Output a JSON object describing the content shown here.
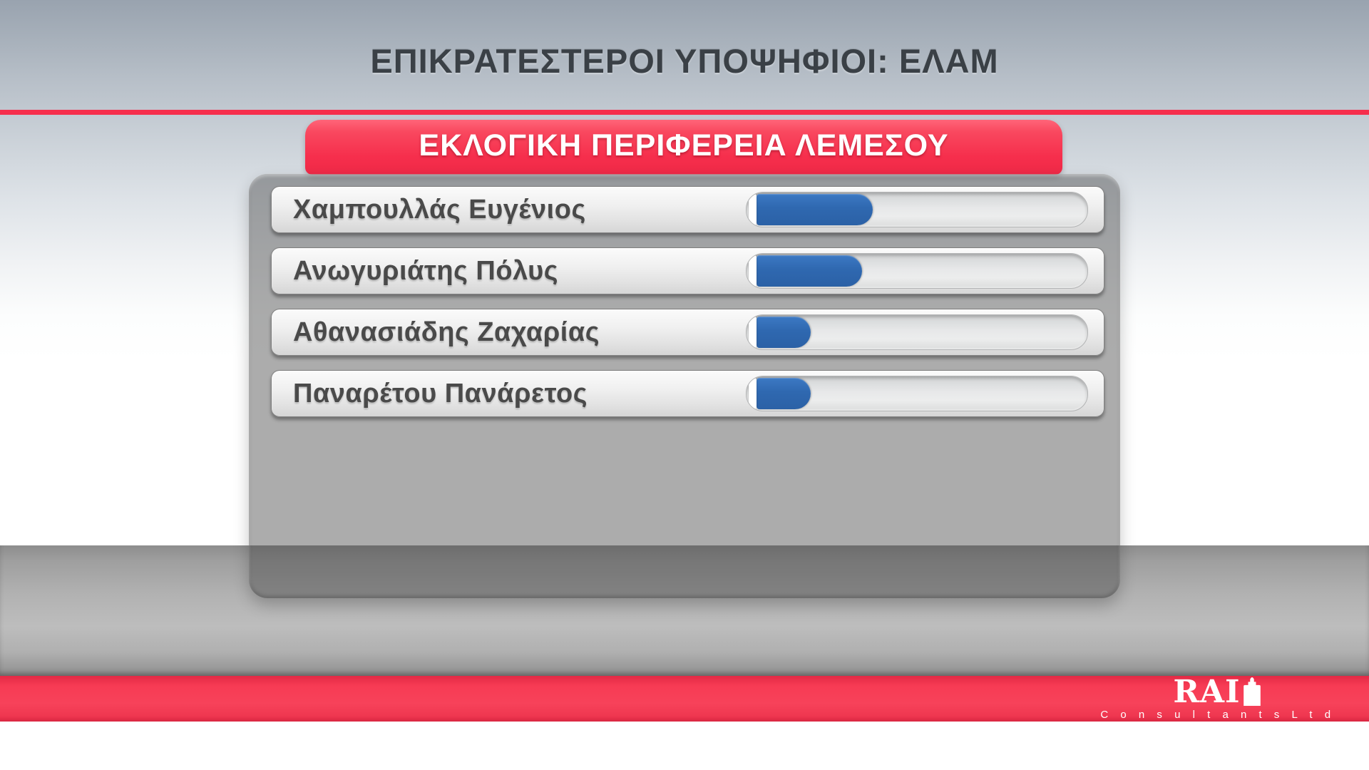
{
  "chart_data": {
    "type": "bar",
    "orientation": "horizontal",
    "title": "ΕΠΙΚΡΑΤΕΣΤΕΡΟΙ ΥΠΟΨΗΦΙΟΙ: ΕΛΑΜ",
    "subtitle": "ΕΚΛΟΓΙΚΗ ΠΕΡΙΦΕΡΕΙΑ ΛΕΜΕΣΟΥ",
    "categories": [
      "Χαμπουλλάς Ευγένιος",
      "Ανωγυριάτης Πόλυς",
      "Αθανασιάδης Ζαχαρίας",
      "Παναρέτου Πανάρετος"
    ],
    "values": [
      34,
      31,
      16,
      16
    ],
    "value_note": "bar fill lengths estimated as percent of track; no numeric labels are shown on screen",
    "xlim": [
      0,
      100
    ],
    "grid": false,
    "legend": "none",
    "bar_color": "#2F68B0",
    "track_color": "#DDDEDF"
  },
  "colors": {
    "accent_red": "#F62E4C",
    "bar_blue": "#2F68B0",
    "title_text": "#3A4046",
    "candidate_text": "#4A4A4A"
  },
  "footer": {
    "logo_text": "RAI",
    "logo_subtext": "C o n s u l t a n t s   L t d",
    "logo_icon": "tower-icon"
  }
}
